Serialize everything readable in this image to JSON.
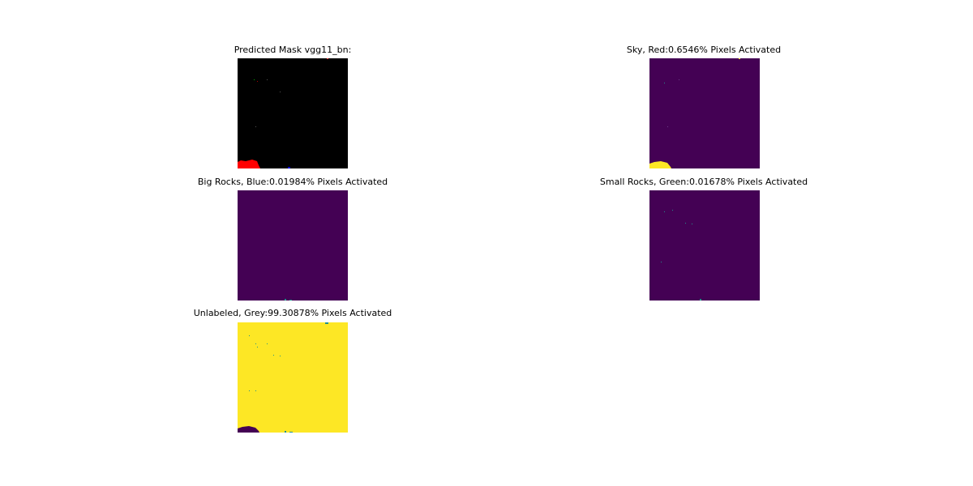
{
  "colors": {
    "black": "#000000",
    "viridis_low": "#440154",
    "viridis_high": "#fde725",
    "viridis_mid": "#21918c",
    "red": "#ff0000",
    "green": "#00ff00",
    "blue": "#0000ff"
  },
  "panels": [
    {
      "title": "Predicted Mask vgg11_bn:",
      "rendering": "rgb-mask"
    },
    {
      "title": "Sky, Red:0.6546% Pixels Activated",
      "rendering": "binary-viridis"
    },
    {
      "title": "Big Rocks, Blue:0.01984% Pixels Activated",
      "rendering": "binary-viridis"
    },
    {
      "title": "Small Rocks, Green:0.01678% Pixels Activated",
      "rendering": "binary-viridis"
    },
    {
      "title": "Unlabeled, Grey:99.30878% Pixels Activated",
      "rendering": "binary-viridis"
    }
  ]
}
